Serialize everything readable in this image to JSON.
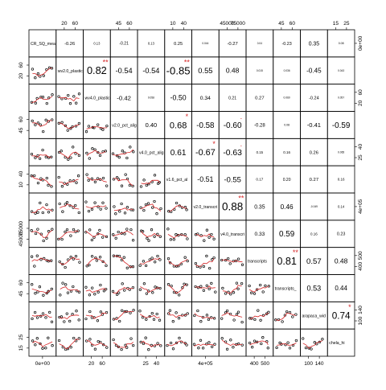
{
  "chart_data": {
    "type": "scatter-matrix",
    "title": "",
    "variables": [
      "CR_SQ_mea",
      "wv2.0_plastic",
      "wv4.0_plastic",
      "v2.0_pct_alig",
      "v4.0_pct_alig",
      "v1.6_pct_al",
      "v2.0_transcri",
      "v4.0_transcri",
      "transcripts",
      "transcripts_",
      "arapaca_wid",
      "chela_hi"
    ],
    "correlations": [
      {
        "row": 1,
        "col": 2,
        "text": "-0.26",
        "stars": ""
      },
      {
        "row": 1,
        "col": 3,
        "text": "0.13",
        "stars": ""
      },
      {
        "row": 1,
        "col": 4,
        "text": "-0.21",
        "stars": ""
      },
      {
        "row": 1,
        "col": 5,
        "text": "0.13",
        "stars": ""
      },
      {
        "row": 1,
        "col": 6,
        "text": "0.25",
        "stars": ""
      },
      {
        "row": 1,
        "col": 7,
        "text": "0.044",
        "stars": ""
      },
      {
        "row": 1,
        "col": 8,
        "text": "-0.27",
        "stars": ""
      },
      {
        "row": 1,
        "col": 9,
        "text": "0.04",
        "stars": ""
      },
      {
        "row": 1,
        "col": 10,
        "text": "-0.23",
        "stars": ""
      },
      {
        "row": 1,
        "col": 11,
        "text": "0.35",
        "stars": ""
      },
      {
        "row": 1,
        "col": 12,
        "text": "0.08",
        "stars": ""
      },
      {
        "row": 2,
        "col": 3,
        "text": "0.82",
        "stars": "**"
      },
      {
        "row": 2,
        "col": 4,
        "text": "-0.54",
        "stars": ""
      },
      {
        "row": 2,
        "col": 5,
        "text": "-0.54",
        "stars": ""
      },
      {
        "row": 2,
        "col": 6,
        "text": "-0.85",
        "stars": "**"
      },
      {
        "row": 2,
        "col": 7,
        "text": "0.55",
        "stars": ""
      },
      {
        "row": 2,
        "col": 8,
        "text": "0.48",
        "stars": ""
      },
      {
        "row": 2,
        "col": 9,
        "text": "0.015",
        "stars": ""
      },
      {
        "row": 2,
        "col": 10,
        "text": "0.036",
        "stars": ""
      },
      {
        "row": 2,
        "col": 11,
        "text": "-0.45",
        "stars": ""
      },
      {
        "row": 2,
        "col": 12,
        "text": "0.043",
        "stars": ""
      },
      {
        "row": 3,
        "col": 4,
        "text": "-0.42",
        "stars": ""
      },
      {
        "row": 3,
        "col": 5,
        "text": "0.058",
        "stars": ""
      },
      {
        "row": 3,
        "col": 6,
        "text": "-0.50",
        "stars": ""
      },
      {
        "row": 3,
        "col": 7,
        "text": "0.34",
        "stars": ""
      },
      {
        "row": 3,
        "col": 8,
        "text": "0.21",
        "stars": ""
      },
      {
        "row": 3,
        "col": 9,
        "text": "0.27",
        "stars": ""
      },
      {
        "row": 3,
        "col": 10,
        "text": "0.060",
        "stars": ""
      },
      {
        "row": 3,
        "col": 11,
        "text": "-0.24",
        "stars": ""
      },
      {
        "row": 3,
        "col": 12,
        "text": "0.057",
        "stars": ""
      },
      {
        "row": 4,
        "col": 5,
        "text": "0.40",
        "stars": ""
      },
      {
        "row": 4,
        "col": 6,
        "text": "0.68",
        "stars": "*"
      },
      {
        "row": 4,
        "col": 7,
        "text": "-0.58",
        "stars": ""
      },
      {
        "row": 4,
        "col": 8,
        "text": "-0.60",
        "stars": "."
      },
      {
        "row": 4,
        "col": 9,
        "text": "-0.28",
        "stars": ""
      },
      {
        "row": 4,
        "col": 10,
        "text": "0.08",
        "stars": ""
      },
      {
        "row": 4,
        "col": 11,
        "text": "-0.41",
        "stars": ""
      },
      {
        "row": 4,
        "col": 12,
        "text": "-0.59",
        "stars": ""
      },
      {
        "row": 5,
        "col": 6,
        "text": "0.61",
        "stars": ""
      },
      {
        "row": 5,
        "col": 7,
        "text": "-0.67",
        "stars": "*"
      },
      {
        "row": 5,
        "col": 8,
        "text": "-0.63",
        "stars": "."
      },
      {
        "row": 5,
        "col": 9,
        "text": "0.15",
        "stars": ""
      },
      {
        "row": 5,
        "col": 10,
        "text": "0.16",
        "stars": ""
      },
      {
        "row": 5,
        "col": 11,
        "text": "0.26",
        "stars": ""
      },
      {
        "row": 5,
        "col": 12,
        "text": "0.065",
        "stars": ""
      },
      {
        "row": 6,
        "col": 7,
        "text": "-0.51",
        "stars": ""
      },
      {
        "row": 6,
        "col": 8,
        "text": "-0.55",
        "stars": ""
      },
      {
        "row": 6,
        "col": 9,
        "text": "0.17",
        "stars": ""
      },
      {
        "row": 6,
        "col": 10,
        "text": "0.20",
        "stars": ""
      },
      {
        "row": 6,
        "col": 11,
        "text": "0.27",
        "stars": ""
      },
      {
        "row": 6,
        "col": 12,
        "text": "0.16",
        "stars": ""
      },
      {
        "row": 7,
        "col": 8,
        "text": "0.88",
        "stars": "**"
      },
      {
        "row": 7,
        "col": 9,
        "text": "0.35",
        "stars": ""
      },
      {
        "row": 7,
        "col": 10,
        "text": "0.46",
        "stars": ""
      },
      {
        "row": 7,
        "col": 11,
        "text": "-0.049",
        "stars": ""
      },
      {
        "row": 7,
        "col": 12,
        "text": "0.14",
        "stars": ""
      },
      {
        "row": 8,
        "col": 9,
        "text": "0.33",
        "stars": ""
      },
      {
        "row": 8,
        "col": 10,
        "text": "0.59",
        "stars": ""
      },
      {
        "row": 8,
        "col": 11,
        "text": "0.16",
        "stars": ""
      },
      {
        "row": 8,
        "col": 12,
        "text": "0.23",
        "stars": ""
      },
      {
        "row": 9,
        "col": 10,
        "text": "0.81",
        "stars": "**"
      },
      {
        "row": 9,
        "col": 11,
        "text": "0.57",
        "stars": ""
      },
      {
        "row": 9,
        "col": 12,
        "text": "0.48",
        "stars": ""
      },
      {
        "row": 10,
        "col": 11,
        "text": "0.53",
        "stars": ""
      },
      {
        "row": 10,
        "col": 12,
        "text": "0.44",
        "stars": ""
      },
      {
        "row": 11,
        "col": 12,
        "text": "0.74",
        "stars": "*"
      }
    ],
    "ticks": {
      "top": [
        {
          "col": 2,
          "labels": [
            "20",
            "60"
          ]
        },
        {
          "col": 4,
          "labels": [
            "45",
            "60"
          ]
        },
        {
          "col": 6,
          "labels": [
            "10",
            "40"
          ]
        },
        {
          "col": 8,
          "labels": [
            "45000",
            "75000"
          ]
        },
        {
          "col": 10,
          "labels": [
            "45",
            "60"
          ]
        },
        {
          "col": 12,
          "labels": [
            "15",
            "25"
          ]
        }
      ],
      "bottom": [
        {
          "col": 1,
          "labels": [
            "0e+00"
          ]
        },
        {
          "col": 3,
          "labels": [
            "20",
            "60"
          ]
        },
        {
          "col": 5,
          "labels": [
            "25",
            "40"
          ]
        },
        {
          "col": 7,
          "labels": [
            "4e+05"
          ]
        },
        {
          "col": 9,
          "labels": [
            "400",
            "500"
          ]
        },
        {
          "col": 11,
          "labels": [
            "100",
            "140"
          ]
        }
      ],
      "left": [
        {
          "row": 2,
          "labels": [
            "60",
            "20"
          ]
        },
        {
          "row": 4,
          "labels": [
            "60",
            "45"
          ]
        },
        {
          "row": 6,
          "labels": [
            "40",
            "10"
          ]
        },
        {
          "row": 8,
          "labels": [
            "75000",
            "45000"
          ]
        },
        {
          "row": 10,
          "labels": [
            "60",
            "45"
          ]
        },
        {
          "row": 12,
          "labels": [
            "25",
            "15"
          ]
        }
      ],
      "right": [
        {
          "row": 1,
          "labels": [
            "0e+00"
          ]
        },
        {
          "row": 3,
          "labels": [
            "60",
            "20"
          ]
        },
        {
          "row": 5,
          "labels": [
            "40",
            "25"
          ]
        },
        {
          "row": 7,
          "labels": [
            "4e+05"
          ]
        },
        {
          "row": 9,
          "labels": [
            "500",
            "400"
          ]
        },
        {
          "row": 11,
          "labels": [
            "140",
            "100"
          ]
        }
      ]
    },
    "grid": false,
    "legend": "none"
  },
  "colors": {
    "points": "#000000",
    "smoother": "#d62728",
    "stars": "#d62728",
    "frame": "#000000",
    "text": "#000000"
  }
}
